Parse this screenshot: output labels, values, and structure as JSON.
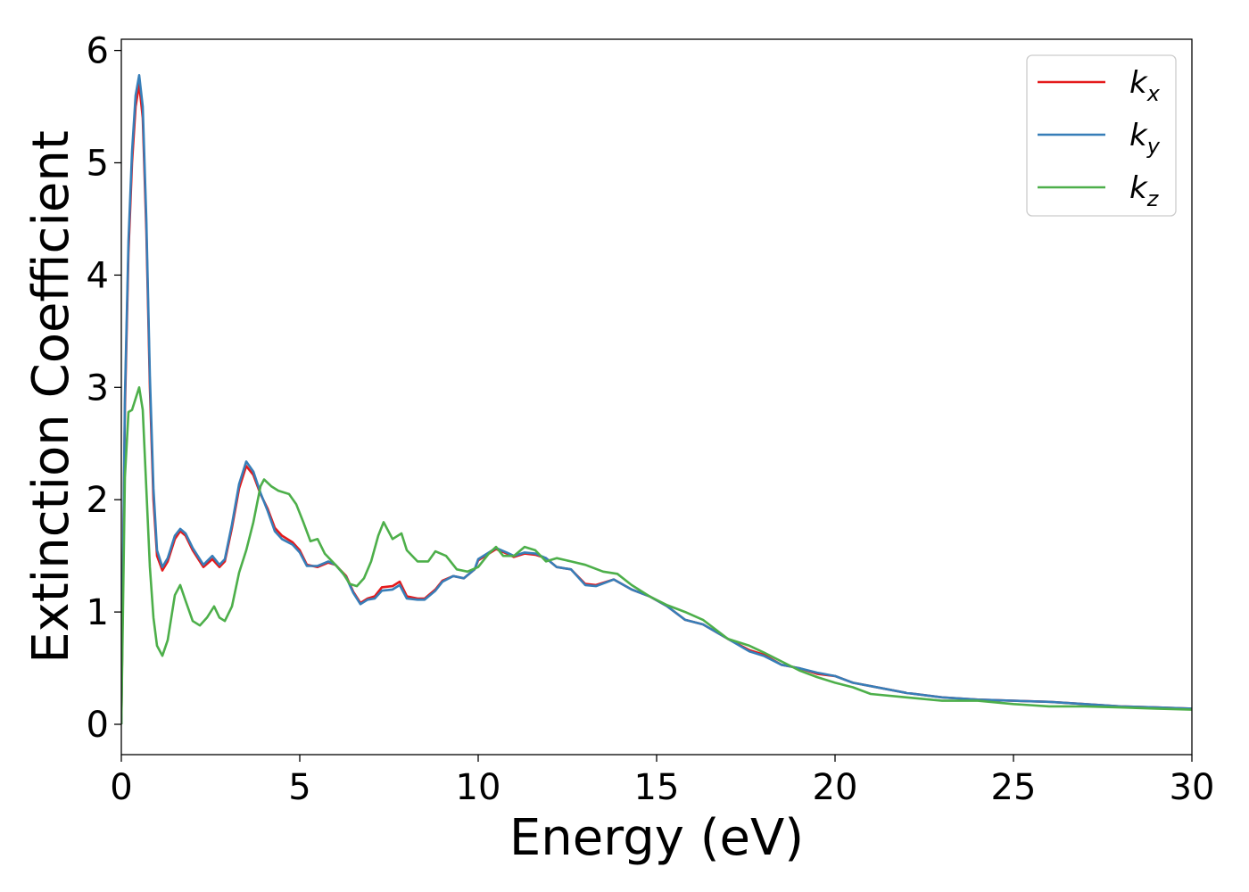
{
  "chart_data": {
    "type": "line",
    "xlabel": "Energy (eV)",
    "ylabel": "Extinction Coefficient",
    "xlim": [
      0,
      30
    ],
    "ylim": [
      -0.27,
      6.1
    ],
    "x_ticks": [
      0,
      5,
      10,
      15,
      20,
      25,
      30
    ],
    "x_tick_labels": [
      "0",
      "5",
      "10",
      "15",
      "20",
      "25",
      "30"
    ],
    "y_ticks": [
      0,
      1,
      2,
      3,
      4,
      5,
      6
    ],
    "y_tick_labels": [
      "0",
      "1",
      "2",
      "3",
      "4",
      "5",
      "6"
    ],
    "grid": false,
    "legend_position": "top-right",
    "series": [
      {
        "name": "k",
        "subscript": "x",
        "color": "#e41a1c",
        "points": [
          [
            0,
            0
          ],
          [
            0.1,
            2.8
          ],
          [
            0.2,
            4.2
          ],
          [
            0.3,
            5.0
          ],
          [
            0.4,
            5.5
          ],
          [
            0.5,
            5.7
          ],
          [
            0.6,
            5.4
          ],
          [
            0.7,
            4.4
          ],
          [
            0.8,
            3.0
          ],
          [
            0.9,
            2.0
          ],
          [
            1.0,
            1.5
          ],
          [
            1.15,
            1.37
          ],
          [
            1.3,
            1.45
          ],
          [
            1.5,
            1.65
          ],
          [
            1.65,
            1.72
          ],
          [
            1.8,
            1.68
          ],
          [
            2.0,
            1.55
          ],
          [
            2.3,
            1.4
          ],
          [
            2.55,
            1.47
          ],
          [
            2.75,
            1.4
          ],
          [
            2.9,
            1.45
          ],
          [
            3.1,
            1.75
          ],
          [
            3.3,
            2.1
          ],
          [
            3.5,
            2.3
          ],
          [
            3.7,
            2.22
          ],
          [
            3.9,
            2.05
          ],
          [
            4.1,
            1.92
          ],
          [
            4.3,
            1.75
          ],
          [
            4.5,
            1.68
          ],
          [
            4.8,
            1.62
          ],
          [
            5.0,
            1.55
          ],
          [
            5.2,
            1.42
          ],
          [
            5.5,
            1.4
          ],
          [
            5.8,
            1.44
          ],
          [
            6.0,
            1.42
          ],
          [
            6.3,
            1.32
          ],
          [
            6.5,
            1.18
          ],
          [
            6.7,
            1.08
          ],
          [
            6.9,
            1.12
          ],
          [
            7.1,
            1.14
          ],
          [
            7.3,
            1.22
          ],
          [
            7.6,
            1.23
          ],
          [
            7.8,
            1.27
          ],
          [
            8.0,
            1.14
          ],
          [
            8.3,
            1.12
          ],
          [
            8.5,
            1.12
          ],
          [
            8.8,
            1.2
          ],
          [
            9.0,
            1.28
          ],
          [
            9.3,
            1.32
          ],
          [
            9.6,
            1.3
          ],
          [
            9.9,
            1.38
          ],
          [
            10.0,
            1.46
          ],
          [
            10.2,
            1.5
          ],
          [
            10.5,
            1.56
          ],
          [
            10.8,
            1.52
          ],
          [
            11.0,
            1.49
          ],
          [
            11.3,
            1.52
          ],
          [
            11.6,
            1.51
          ],
          [
            11.9,
            1.48
          ],
          [
            12.2,
            1.4
          ],
          [
            12.6,
            1.38
          ],
          [
            13.0,
            1.25
          ],
          [
            13.3,
            1.24
          ],
          [
            13.8,
            1.29
          ],
          [
            14.3,
            1.2
          ],
          [
            14.8,
            1.14
          ],
          [
            15.3,
            1.05
          ],
          [
            15.8,
            0.93
          ],
          [
            16.3,
            0.89
          ],
          [
            17.0,
            0.76
          ],
          [
            17.6,
            0.66
          ],
          [
            18.0,
            0.62
          ],
          [
            18.5,
            0.53
          ],
          [
            19.0,
            0.5
          ],
          [
            19.5,
            0.45
          ],
          [
            20.0,
            0.43
          ],
          [
            20.5,
            0.37
          ],
          [
            21.0,
            0.34
          ],
          [
            22.0,
            0.28
          ],
          [
            23.0,
            0.24
          ],
          [
            24.0,
            0.22
          ],
          [
            25.0,
            0.21
          ],
          [
            26.0,
            0.2
          ],
          [
            27.0,
            0.18
          ],
          [
            28.0,
            0.16
          ],
          [
            29.0,
            0.15
          ],
          [
            30.0,
            0.14
          ]
        ]
      },
      {
        "name": "k",
        "subscript": "y",
        "color": "#377eb8",
        "points": [
          [
            0,
            0
          ],
          [
            0.1,
            2.9
          ],
          [
            0.2,
            4.3
          ],
          [
            0.3,
            5.1
          ],
          [
            0.4,
            5.6
          ],
          [
            0.5,
            5.78
          ],
          [
            0.6,
            5.5
          ],
          [
            0.7,
            4.5
          ],
          [
            0.8,
            3.1
          ],
          [
            0.9,
            2.1
          ],
          [
            1.0,
            1.55
          ],
          [
            1.15,
            1.4
          ],
          [
            1.3,
            1.48
          ],
          [
            1.5,
            1.68
          ],
          [
            1.65,
            1.74
          ],
          [
            1.8,
            1.7
          ],
          [
            2.0,
            1.57
          ],
          [
            2.3,
            1.42
          ],
          [
            2.55,
            1.5
          ],
          [
            2.75,
            1.42
          ],
          [
            2.9,
            1.47
          ],
          [
            3.1,
            1.78
          ],
          [
            3.3,
            2.14
          ],
          [
            3.5,
            2.34
          ],
          [
            3.7,
            2.25
          ],
          [
            3.9,
            2.06
          ],
          [
            4.1,
            1.9
          ],
          [
            4.3,
            1.72
          ],
          [
            4.5,
            1.65
          ],
          [
            4.8,
            1.6
          ],
          [
            5.0,
            1.53
          ],
          [
            5.2,
            1.41
          ],
          [
            5.5,
            1.41
          ],
          [
            5.8,
            1.45
          ],
          [
            6.0,
            1.42
          ],
          [
            6.3,
            1.31
          ],
          [
            6.5,
            1.17
          ],
          [
            6.7,
            1.07
          ],
          [
            6.9,
            1.11
          ],
          [
            7.1,
            1.12
          ],
          [
            7.3,
            1.19
          ],
          [
            7.6,
            1.2
          ],
          [
            7.8,
            1.24
          ],
          [
            8.0,
            1.12
          ],
          [
            8.3,
            1.11
          ],
          [
            8.5,
            1.11
          ],
          [
            8.8,
            1.19
          ],
          [
            9.0,
            1.27
          ],
          [
            9.3,
            1.32
          ],
          [
            9.6,
            1.3
          ],
          [
            9.9,
            1.38
          ],
          [
            10.0,
            1.47
          ],
          [
            10.2,
            1.51
          ],
          [
            10.5,
            1.57
          ],
          [
            10.8,
            1.53
          ],
          [
            11.0,
            1.5
          ],
          [
            11.3,
            1.53
          ],
          [
            11.6,
            1.52
          ],
          [
            11.9,
            1.48
          ],
          [
            12.2,
            1.4
          ],
          [
            12.6,
            1.38
          ],
          [
            13.0,
            1.24
          ],
          [
            13.3,
            1.23
          ],
          [
            13.8,
            1.29
          ],
          [
            14.3,
            1.2
          ],
          [
            14.8,
            1.14
          ],
          [
            15.3,
            1.05
          ],
          [
            15.8,
            0.93
          ],
          [
            16.3,
            0.89
          ],
          [
            17.0,
            0.76
          ],
          [
            17.6,
            0.65
          ],
          [
            18.0,
            0.61
          ],
          [
            18.5,
            0.53
          ],
          [
            19.0,
            0.5
          ],
          [
            19.5,
            0.46
          ],
          [
            20.0,
            0.43
          ],
          [
            20.5,
            0.37
          ],
          [
            21.0,
            0.34
          ],
          [
            22.0,
            0.28
          ],
          [
            23.0,
            0.24
          ],
          [
            24.0,
            0.22
          ],
          [
            25.0,
            0.21
          ],
          [
            26.0,
            0.2
          ],
          [
            27.0,
            0.18
          ],
          [
            28.0,
            0.16
          ],
          [
            29.0,
            0.15
          ],
          [
            30.0,
            0.14
          ]
        ]
      },
      {
        "name": "k",
        "subscript": "z",
        "color": "#4daf4a",
        "points": [
          [
            0,
            0
          ],
          [
            0.1,
            2.2
          ],
          [
            0.2,
            2.78
          ],
          [
            0.3,
            2.8
          ],
          [
            0.4,
            2.9
          ],
          [
            0.5,
            3.0
          ],
          [
            0.6,
            2.8
          ],
          [
            0.7,
            2.1
          ],
          [
            0.8,
            1.4
          ],
          [
            0.9,
            0.95
          ],
          [
            1.0,
            0.7
          ],
          [
            1.15,
            0.61
          ],
          [
            1.3,
            0.75
          ],
          [
            1.5,
            1.15
          ],
          [
            1.65,
            1.24
          ],
          [
            1.8,
            1.1
          ],
          [
            2.0,
            0.92
          ],
          [
            2.2,
            0.88
          ],
          [
            2.4,
            0.95
          ],
          [
            2.6,
            1.05
          ],
          [
            2.75,
            0.95
          ],
          [
            2.9,
            0.92
          ],
          [
            3.1,
            1.05
          ],
          [
            3.3,
            1.35
          ],
          [
            3.5,
            1.55
          ],
          [
            3.7,
            1.8
          ],
          [
            3.9,
            2.12
          ],
          [
            4.0,
            2.18
          ],
          [
            4.2,
            2.12
          ],
          [
            4.4,
            2.08
          ],
          [
            4.7,
            2.05
          ],
          [
            4.9,
            1.96
          ],
          [
            5.1,
            1.8
          ],
          [
            5.3,
            1.63
          ],
          [
            5.5,
            1.65
          ],
          [
            5.7,
            1.52
          ],
          [
            6.0,
            1.42
          ],
          [
            6.2,
            1.35
          ],
          [
            6.4,
            1.25
          ],
          [
            6.6,
            1.23
          ],
          [
            6.8,
            1.3
          ],
          [
            7.0,
            1.45
          ],
          [
            7.2,
            1.68
          ],
          [
            7.35,
            1.8
          ],
          [
            7.6,
            1.65
          ],
          [
            7.85,
            1.7
          ],
          [
            8.0,
            1.55
          ],
          [
            8.3,
            1.45
          ],
          [
            8.6,
            1.45
          ],
          [
            8.8,
            1.54
          ],
          [
            9.1,
            1.5
          ],
          [
            9.4,
            1.38
          ],
          [
            9.7,
            1.36
          ],
          [
            10.0,
            1.4
          ],
          [
            10.3,
            1.52
          ],
          [
            10.5,
            1.58
          ],
          [
            10.7,
            1.5
          ],
          [
            11.0,
            1.5
          ],
          [
            11.3,
            1.58
          ],
          [
            11.6,
            1.55
          ],
          [
            11.9,
            1.45
          ],
          [
            12.2,
            1.48
          ],
          [
            12.6,
            1.45
          ],
          [
            13.0,
            1.42
          ],
          [
            13.5,
            1.36
          ],
          [
            13.9,
            1.34
          ],
          [
            14.3,
            1.24
          ],
          [
            14.8,
            1.14
          ],
          [
            15.3,
            1.06
          ],
          [
            15.8,
            1.0
          ],
          [
            16.3,
            0.93
          ],
          [
            17.0,
            0.76
          ],
          [
            17.6,
            0.7
          ],
          [
            18.0,
            0.64
          ],
          [
            18.5,
            0.56
          ],
          [
            19.0,
            0.48
          ],
          [
            19.5,
            0.42
          ],
          [
            20.0,
            0.37
          ],
          [
            20.5,
            0.33
          ],
          [
            21.0,
            0.27
          ],
          [
            22.0,
            0.24
          ],
          [
            23.0,
            0.21
          ],
          [
            24.0,
            0.21
          ],
          [
            25.0,
            0.18
          ],
          [
            26.0,
            0.16
          ],
          [
            27.0,
            0.16
          ],
          [
            28.0,
            0.15
          ],
          [
            29.0,
            0.14
          ],
          [
            30.0,
            0.13
          ]
        ]
      }
    ]
  }
}
